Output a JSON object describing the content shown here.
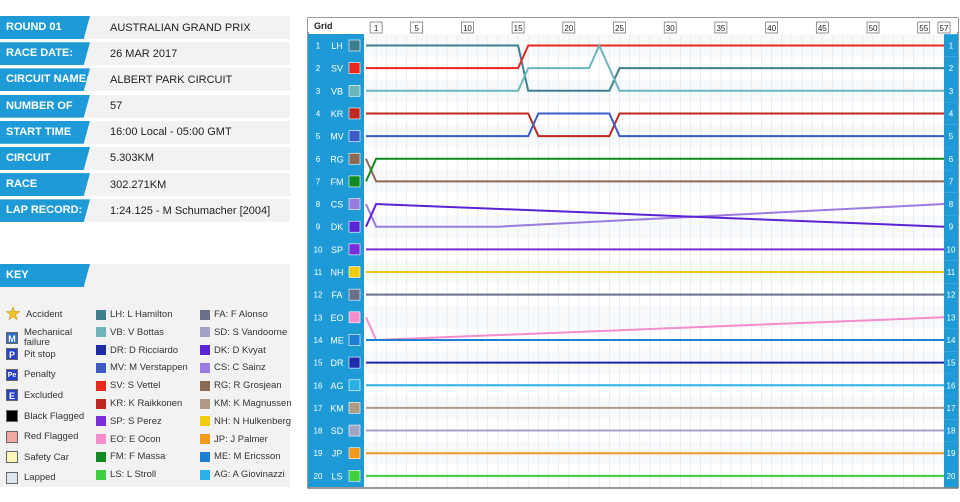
{
  "race_info": [
    {
      "label": "ROUND 01",
      "value": "AUSTRALIAN GRAND PRIX"
    },
    {
      "label": "RACE DATE:",
      "value": "26 MAR 2017"
    },
    {
      "label": "CIRCUIT NAME:",
      "value": "ALBERT PARK CIRCUIT"
    },
    {
      "label": "NUMBER OF LAPS:",
      "value": "57"
    },
    {
      "label": "START TIME",
      "value": "16:00 Local - 05:00 GMT"
    },
    {
      "label": "CIRCUIT LENGTH:",
      "value": "5.303KM"
    },
    {
      "label": "RACE DISTANCE:",
      "value": "302.271KM"
    },
    {
      "label": "LAP RECORD:",
      "value": "1:24.125 - M Schumacher [2004]"
    }
  ],
  "key": {
    "title": "KEY",
    "symbols": [
      {
        "name": "accident",
        "label": "Accident",
        "icon": "star-icon",
        "color": "#f2c12e"
      },
      {
        "name": "mechanical",
        "label": "Mechanical failure",
        "glyph": "M",
        "color": "#2e6fc9"
      },
      {
        "name": "pitstop",
        "label": "Pit stop",
        "glyph": "P",
        "color": "#2541c9"
      },
      {
        "name": "penalty",
        "label": "Penalty",
        "glyph": "Pe",
        "color": "#2541c9"
      },
      {
        "name": "excluded",
        "label": "Excluded",
        "glyph": "E",
        "color": "#2541c9"
      },
      {
        "name": "black-flag",
        "label": "Black Flagged",
        "color": "#000000"
      },
      {
        "name": "red-flag",
        "label": "Red Flagged",
        "color": "#f0a8a0"
      },
      {
        "name": "safety-car",
        "label": "Safety Car",
        "color": "#fcf6b8"
      },
      {
        "name": "lapped",
        "label": "Lapped",
        "color": "#dde6ee"
      }
    ]
  },
  "drivers": [
    {
      "code": "LH",
      "name": "L Hamilton",
      "color": "#3d7f8e"
    },
    {
      "code": "VB",
      "name": "V Bottas",
      "color": "#6cb5bd"
    },
    {
      "code": "DR",
      "name": "D Ricciardo",
      "color": "#1e2ba8"
    },
    {
      "code": "MV",
      "name": "M Verstappen",
      "color": "#3b5bc7"
    },
    {
      "code": "SV",
      "name": "S Vettel",
      "color": "#e8281d"
    },
    {
      "code": "KR",
      "name": "K Raikkonen",
      "color": "#c0271e"
    },
    {
      "code": "SP",
      "name": "S Perez",
      "color": "#7a2ed9"
    },
    {
      "code": "EO",
      "name": "E Ocon",
      "color": "#f58ccb"
    },
    {
      "code": "FM",
      "name": "F Massa",
      "color": "#0f8a1f"
    },
    {
      "code": "LS",
      "name": "L Stroll",
      "color": "#3fcf3f"
    },
    {
      "code": "FA",
      "name": "F Alonso",
      "color": "#6b7088"
    },
    {
      "code": "SD",
      "name": "S Vandoorne",
      "color": "#a3a3c6"
    },
    {
      "code": "DK",
      "name": "D Kvyat",
      "color": "#5a24d4"
    },
    {
      "code": "CS",
      "name": "C Sainz",
      "color": "#9a7be0"
    },
    {
      "code": "RG",
      "name": "R Grosjean",
      "color": "#8a6a55"
    },
    {
      "code": "KM",
      "name": "K Magnussen",
      "color": "#b09a86"
    },
    {
      "code": "NH",
      "name": "N Hulkenberg",
      "color": "#f1cb10"
    },
    {
      "code": "JP",
      "name": "J Palmer",
      "color": "#f29a1c"
    },
    {
      "code": "ME",
      "name": "M Ericsson",
      "color": "#1e7fd7"
    },
    {
      "code": "AG",
      "name": "A Giovinazzi",
      "color": "#2ab0e5"
    }
  ],
  "chart_data": {
    "type": "line",
    "title": "",
    "xlabel": "",
    "ylabel": "Grid",
    "x_ticks": [
      1,
      5,
      10,
      15,
      20,
      25,
      30,
      35,
      40,
      45,
      50,
      55,
      57
    ],
    "total_laps": 57,
    "positions": 20,
    "grid_order": [
      "LH",
      "SV",
      "VB",
      "KR",
      "MV",
      "RG",
      "FM",
      "CS",
      "DK",
      "SP",
      "NH",
      "FA",
      "EO",
      "ME",
      "DR",
      "AG",
      "KM",
      "SD",
      "JP",
      "LS"
    ],
    "series": [
      {
        "name": "LH",
        "points": [
          [
            0,
            1
          ],
          [
            15,
            1
          ],
          [
            16,
            3
          ],
          [
            24,
            3
          ],
          [
            25,
            2
          ],
          [
            57,
            2
          ]
        ]
      },
      {
        "name": "SV",
        "points": [
          [
            0,
            2
          ],
          [
            15,
            2
          ],
          [
            16,
            1
          ],
          [
            57,
            1
          ]
        ]
      },
      {
        "name": "VB",
        "points": [
          [
            0,
            3
          ],
          [
            15,
            3
          ],
          [
            16,
            2
          ],
          [
            22,
            2
          ],
          [
            23,
            1
          ],
          [
            24,
            2
          ],
          [
            25,
            3
          ],
          [
            57,
            3
          ]
        ]
      },
      {
        "name": "KR",
        "points": [
          [
            0,
            4
          ],
          [
            16,
            4
          ],
          [
            17,
            5
          ],
          [
            24,
            5
          ],
          [
            25,
            4
          ],
          [
            57,
            4
          ]
        ]
      },
      {
        "name": "MV",
        "points": [
          [
            0,
            5
          ],
          [
            16,
            5
          ],
          [
            17,
            4
          ],
          [
            24,
            4
          ],
          [
            25,
            5
          ],
          [
            57,
            5
          ]
        ]
      },
      {
        "name": "RG",
        "points": [
          [
            0,
            6
          ],
          [
            1,
            7
          ],
          [
            13,
            7
          ],
          [
            57,
            7
          ]
        ]
      },
      {
        "name": "FM",
        "points": [
          [
            0,
            7
          ],
          [
            1,
            6
          ],
          [
            33,
            6
          ],
          [
            57,
            6
          ]
        ]
      },
      {
        "name": "CS",
        "points": [
          [
            0,
            8
          ],
          [
            1,
            9
          ],
          [
            13,
            9
          ],
          [
            57,
            8
          ]
        ]
      },
      {
        "name": "DK",
        "points": [
          [
            0,
            9
          ],
          [
            1,
            8
          ],
          [
            57,
            9
          ]
        ]
      },
      {
        "name": "SP",
        "points": [
          [
            0,
            10
          ],
          [
            1,
            10
          ],
          [
            57,
            10
          ]
        ]
      },
      {
        "name": "NH",
        "points": [
          [
            0,
            11
          ],
          [
            1,
            11
          ],
          [
            57,
            11
          ]
        ]
      },
      {
        "name": "FA",
        "points": [
          [
            0,
            12
          ],
          [
            1,
            12
          ],
          [
            57,
            12
          ]
        ]
      },
      {
        "name": "EO",
        "points": [
          [
            0,
            13
          ],
          [
            1,
            14
          ],
          [
            57,
            13
          ]
        ]
      },
      {
        "name": "ME",
        "points": [
          [
            0,
            14
          ],
          [
            1,
            14
          ],
          [
            57,
            14
          ]
        ]
      },
      {
        "name": "DR",
        "points": [
          [
            0,
            15
          ],
          [
            1,
            15
          ],
          [
            57,
            15
          ]
        ]
      },
      {
        "name": "AG",
        "points": [
          [
            0,
            16
          ],
          [
            57,
            16
          ]
        ]
      },
      {
        "name": "KM",
        "points": [
          [
            0,
            17
          ],
          [
            57,
            17
          ]
        ]
      },
      {
        "name": "SD",
        "points": [
          [
            0,
            18
          ],
          [
            1,
            18
          ],
          [
            57,
            18
          ]
        ]
      },
      {
        "name": "JP",
        "points": [
          [
            0,
            19
          ],
          [
            1,
            19
          ],
          [
            57,
            19
          ]
        ]
      },
      {
        "name": "LS",
        "points": [
          [
            0,
            20
          ],
          [
            1,
            20
          ],
          [
            57,
            20
          ]
        ]
      }
    ]
  }
}
